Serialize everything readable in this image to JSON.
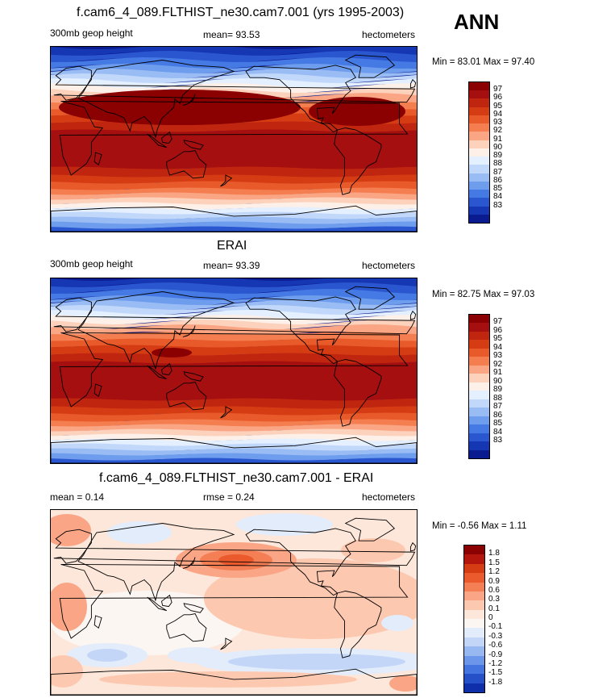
{
  "season": "ANN",
  "panels": [
    {
      "title": "f.cam6_4_089.FLTHIST_ne30.cam7.001 (yrs 1995-2003)",
      "left_label": "300mb geop height",
      "center_label": "mean=  93.53",
      "right_label": "hectometers",
      "minmax": "Min =  83.01 Max =  97.40",
      "field": "model",
      "colorbar": {
        "labels": [
          "97",
          "96",
          "95",
          "94",
          "93",
          "92",
          "91",
          "90",
          "89",
          "88",
          "87",
          "86",
          "85",
          "84",
          "83"
        ],
        "colors": [
          "#8b0000",
          "#a50f0f",
          "#c0260f",
          "#d63c14",
          "#e85a2a",
          "#f47e50",
          "#faa583",
          "#fdd2bd",
          "#fdf0e8",
          "#e4efff",
          "#c2d8fb",
          "#99bcf4",
          "#6e9dee",
          "#4579e3",
          "#2a56d0",
          "#1637b4",
          "#0a1b90"
        ]
      }
    },
    {
      "title": "ERAI",
      "left_label": "300mb geop height",
      "center_label": "mean=  93.39",
      "right_label": "hectometers",
      "minmax": "Min =  82.75 Max =  97.03",
      "field": "obs",
      "colorbar": {
        "labels": [
          "97",
          "96",
          "95",
          "94",
          "93",
          "92",
          "91",
          "90",
          "89",
          "88",
          "87",
          "86",
          "85",
          "84",
          "83"
        ],
        "colors": [
          "#8b0000",
          "#a50f0f",
          "#c0260f",
          "#d63c14",
          "#e85a2a",
          "#f47e50",
          "#faa583",
          "#fdd2bd",
          "#fdf0e8",
          "#e4efff",
          "#c2d8fb",
          "#99bcf4",
          "#6e9dee",
          "#4579e3",
          "#2a56d0",
          "#1637b4",
          "#0a1b90"
        ]
      }
    },
    {
      "title": "f.cam6_4_089.FLTHIST_ne30.cam7.001 - ERAI",
      "left_label": "mean =   0.14",
      "center_label": "rmse =   0.24",
      "right_label": "hectometers",
      "minmax": "Min =  -0.56 Max =   1.11",
      "field": "diff",
      "colorbar": {
        "labels": [
          "1.8",
          "1.5",
          "1.2",
          "0.9",
          "0.6",
          "0.3",
          "0.1",
          "0",
          "-0.1",
          "-0.3",
          "-0.6",
          "-0.9",
          "-1.2",
          "-1.5",
          "-1.8"
        ],
        "colors": [
          "#8b0000",
          "#b4150d",
          "#d63c14",
          "#ea5a2c",
          "#f47f55",
          "#faa686",
          "#fdc8b0",
          "#fde7da",
          "#fbf6f2",
          "#e2ecfb",
          "#c3d6f7",
          "#98b8f1",
          "#6c96ea",
          "#4474df",
          "#2650c8",
          "#0f2ea9"
        ]
      }
    }
  ]
}
